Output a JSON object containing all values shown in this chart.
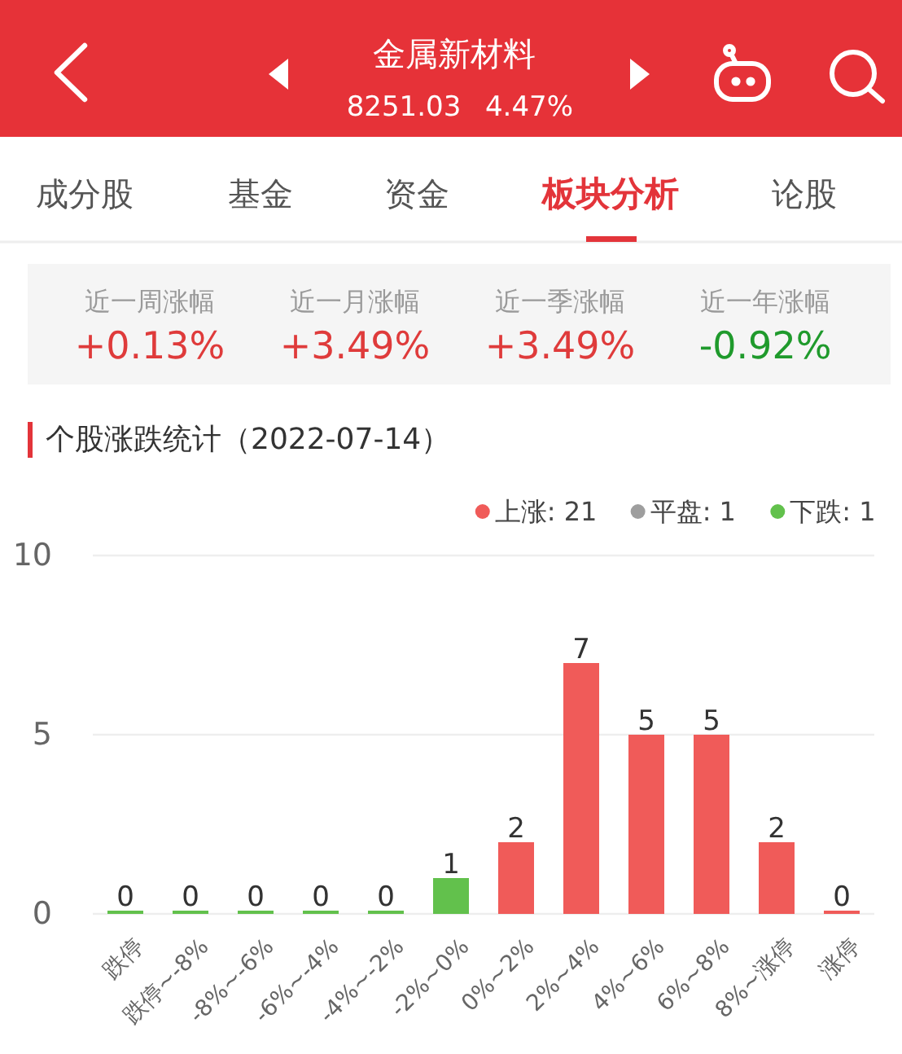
{
  "chart_data": {
    "type": "bar",
    "title": "个股涨跌统计（2022-07-14）",
    "categories": [
      "跌停",
      "跌停~-8%",
      "-8%~-6%",
      "-6%~-4%",
      "-4%~-2%",
      "-2%~0%",
      "0%~2%",
      "2%~4%",
      "4%~6%",
      "6%~8%",
      "8%~涨停",
      "涨停"
    ],
    "series": [
      {
        "name": "上涨: 21",
        "color": "#f05b59",
        "values": [
          null,
          null,
          null,
          null,
          null,
          null,
          2,
          7,
          5,
          5,
          2,
          0
        ]
      },
      {
        "name": "平盘: 1",
        "color": "#9e9e9e",
        "values": [
          null,
          null,
          null,
          null,
          null,
          null,
          null,
          null,
          null,
          null,
          null,
          null
        ]
      },
      {
        "name": "下跌: 1",
        "color": "#62c14c",
        "values": [
          0,
          0,
          0,
          0,
          0,
          1,
          null,
          null,
          null,
          null,
          null,
          null
        ]
      }
    ],
    "stacked": true,
    "ylim": [
      0,
      10
    ],
    "yticks": [
      0,
      5,
      10
    ],
    "grid": "y",
    "legend": "top right",
    "data_labels": true,
    "annotations": [
      "金属新材料",
      "8251.03",
      "4.47%",
      "成分股",
      "基金",
      "资金",
      "板块分析",
      "论股",
      "近一周涨幅",
      "+0.13%",
      "近一月涨幅",
      "+3.49%",
      "近一季涨幅",
      "+3.49%",
      "近一年涨幅",
      "-0.92%"
    ]
  }
}
